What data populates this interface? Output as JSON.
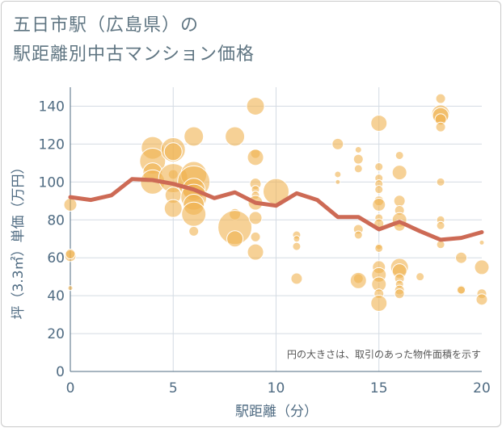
{
  "title": {
    "line1": "五日市駅（広島県）の",
    "line2": "駅距離別中古マンション価格"
  },
  "note": "円の大きさは、取引のあった物件面積を示す",
  "colors": {
    "bubble": "#f0b250",
    "line": "#cd6a55",
    "grid": "#d4dbe3",
    "axis": "#4f6b82"
  },
  "chart_data": {
    "type": "scatter",
    "xlabel": "駅距離（分）",
    "ylabel": "坪（3.3㎡）単価（万円）",
    "xlim": [
      0,
      20
    ],
    "ylim": [
      0,
      150
    ],
    "x_ticks": [
      0,
      5,
      10,
      15,
      20
    ],
    "y_ticks": [
      0,
      20,
      40,
      60,
      80,
      100,
      120,
      140
    ],
    "x_tick_labels": [
      "0",
      "5",
      "10",
      "15",
      "20"
    ],
    "y_tick_labels": [
      "0",
      "20",
      "40",
      "60",
      "80",
      "100",
      "120",
      "140"
    ],
    "grid": true,
    "bubbles": [
      {
        "x": 0,
        "y": 44,
        "r": 3
      },
      {
        "x": 0,
        "y": 61,
        "r": 7
      },
      {
        "x": 0,
        "y": 62,
        "r": 6
      },
      {
        "x": 0,
        "y": 88,
        "r": 8
      },
      {
        "x": 4,
        "y": 118,
        "r": 14
      },
      {
        "x": 4,
        "y": 111,
        "r": 16
      },
      {
        "x": 4,
        "y": 105,
        "r": 12
      },
      {
        "x": 4,
        "y": 100,
        "r": 15
      },
      {
        "x": 5,
        "y": 117,
        "r": 15
      },
      {
        "x": 5,
        "y": 116,
        "r": 11
      },
      {
        "x": 5,
        "y": 104,
        "r": 6
      },
      {
        "x": 5,
        "y": 102,
        "r": 18
      },
      {
        "x": 5,
        "y": 93,
        "r": 10
      },
      {
        "x": 5,
        "y": 86,
        "r": 11
      },
      {
        "x": 6,
        "y": 124,
        "r": 12
      },
      {
        "x": 6,
        "y": 104,
        "r": 16
      },
      {
        "x": 6,
        "y": 100,
        "r": 20
      },
      {
        "x": 6,
        "y": 96,
        "r": 14
      },
      {
        "x": 6,
        "y": 92,
        "r": 16
      },
      {
        "x": 6,
        "y": 88,
        "r": 13
      },
      {
        "x": 6,
        "y": 83,
        "r": 15
      },
      {
        "x": 6,
        "y": 74,
        "r": 6
      },
      {
        "x": 8,
        "y": 124,
        "r": 12
      },
      {
        "x": 8,
        "y": 83,
        "r": 7
      },
      {
        "x": 8,
        "y": 76,
        "r": 21
      },
      {
        "x": 8,
        "y": 70,
        "r": 10
      },
      {
        "x": 9,
        "y": 140,
        "r": 11
      },
      {
        "x": 9,
        "y": 115,
        "r": 6
      },
      {
        "x": 9,
        "y": 113,
        "r": 10
      },
      {
        "x": 9,
        "y": 99,
        "r": 7
      },
      {
        "x": 9,
        "y": 96,
        "r": 5
      },
      {
        "x": 9,
        "y": 93,
        "r": 5
      },
      {
        "x": 9,
        "y": 89,
        "r": 9
      },
      {
        "x": 9,
        "y": 81,
        "r": 8
      },
      {
        "x": 9,
        "y": 71,
        "r": 6
      },
      {
        "x": 9,
        "y": 63,
        "r": 10
      },
      {
        "x": 10,
        "y": 95,
        "r": 16
      },
      {
        "x": 11,
        "y": 72,
        "r": 5
      },
      {
        "x": 11,
        "y": 70,
        "r": 4
      },
      {
        "x": 11,
        "y": 66,
        "r": 5
      },
      {
        "x": 11,
        "y": 49,
        "r": 7
      },
      {
        "x": 13,
        "y": 120,
        "r": 7
      },
      {
        "x": 13,
        "y": 104,
        "r": 4
      },
      {
        "x": 13,
        "y": 100,
        "r": 3
      },
      {
        "x": 14,
        "y": 117,
        "r": 4
      },
      {
        "x": 14,
        "y": 112,
        "r": 6
      },
      {
        "x": 14,
        "y": 107,
        "r": 5
      },
      {
        "x": 14,
        "y": 75,
        "r": 6
      },
      {
        "x": 14,
        "y": 72,
        "r": 5
      },
      {
        "x": 14,
        "y": 49,
        "r": 6
      },
      {
        "x": 14,
        "y": 48,
        "r": 10
      },
      {
        "x": 15,
        "y": 131,
        "r": 10
      },
      {
        "x": 15,
        "y": 108,
        "r": 5
      },
      {
        "x": 15,
        "y": 102,
        "r": 5
      },
      {
        "x": 15,
        "y": 99,
        "r": 5
      },
      {
        "x": 15,
        "y": 96,
        "r": 5
      },
      {
        "x": 15,
        "y": 90,
        "r": 6
      },
      {
        "x": 15,
        "y": 88,
        "r": 8
      },
      {
        "x": 15,
        "y": 81,
        "r": 5
      },
      {
        "x": 15,
        "y": 78,
        "r": 6
      },
      {
        "x": 15,
        "y": 66,
        "r": 4
      },
      {
        "x": 15,
        "y": 65,
        "r": 5
      },
      {
        "x": 15,
        "y": 55,
        "r": 8
      },
      {
        "x": 15,
        "y": 51,
        "r": 9
      },
      {
        "x": 15,
        "y": 46,
        "r": 9
      },
      {
        "x": 15,
        "y": 41,
        "r": 6
      },
      {
        "x": 15,
        "y": 36,
        "r": 10
      },
      {
        "x": 16,
        "y": 114,
        "r": 5
      },
      {
        "x": 16,
        "y": 105,
        "r": 9
      },
      {
        "x": 16,
        "y": 90,
        "r": 7
      },
      {
        "x": 16,
        "y": 85,
        "r": 6
      },
      {
        "x": 16,
        "y": 80,
        "r": 9
      },
      {
        "x": 16,
        "y": 77,
        "r": 7
      },
      {
        "x": 16,
        "y": 55,
        "r": 11
      },
      {
        "x": 16,
        "y": 53,
        "r": 9
      },
      {
        "x": 16,
        "y": 49,
        "r": 6
      },
      {
        "x": 16,
        "y": 46,
        "r": 5
      },
      {
        "x": 16,
        "y": 43,
        "r": 6
      },
      {
        "x": 16,
        "y": 41,
        "r": 6
      },
      {
        "x": 17,
        "y": 50,
        "r": 5
      },
      {
        "x": 18,
        "y": 144,
        "r": 6
      },
      {
        "x": 18,
        "y": 136,
        "r": 11
      },
      {
        "x": 18,
        "y": 135,
        "r": 10
      },
      {
        "x": 18,
        "y": 133,
        "r": 7
      },
      {
        "x": 18,
        "y": 129,
        "r": 6
      },
      {
        "x": 18,
        "y": 100,
        "r": 5
      },
      {
        "x": 18,
        "y": 80,
        "r": 5
      },
      {
        "x": 18,
        "y": 77,
        "r": 5
      },
      {
        "x": 18,
        "y": 67,
        "r": 5
      },
      {
        "x": 19,
        "y": 60,
        "r": 7
      },
      {
        "x": 19,
        "y": 43,
        "r": 6
      },
      {
        "x": 19,
        "y": 43,
        "r": 5
      },
      {
        "x": 20,
        "y": 68,
        "r": 3
      },
      {
        "x": 20,
        "y": 55,
        "r": 9
      },
      {
        "x": 20,
        "y": 41,
        "r": 6
      },
      {
        "x": 20,
        "y": 38,
        "r": 7
      }
    ],
    "trend": [
      {
        "x": 0,
        "y": 92
      },
      {
        "x": 1,
        "y": 90.5
      },
      {
        "x": 2,
        "y": 93
      },
      {
        "x": 3,
        "y": 101.5
      },
      {
        "x": 4,
        "y": 101
      },
      {
        "x": 5,
        "y": 99
      },
      {
        "x": 6,
        "y": 96
      },
      {
        "x": 7,
        "y": 91.5
      },
      {
        "x": 8,
        "y": 94.5
      },
      {
        "x": 9,
        "y": 89
      },
      {
        "x": 10,
        "y": 87.5
      },
      {
        "x": 11,
        "y": 94
      },
      {
        "x": 12,
        "y": 90.5
      },
      {
        "x": 13,
        "y": 81.5
      },
      {
        "x": 14,
        "y": 81.5
      },
      {
        "x": 15,
        "y": 75
      },
      {
        "x": 16,
        "y": 79
      },
      {
        "x": 17,
        "y": 74
      },
      {
        "x": 18,
        "y": 69.5
      },
      {
        "x": 19,
        "y": 70.5
      },
      {
        "x": 20,
        "y": 73.5
      }
    ]
  }
}
